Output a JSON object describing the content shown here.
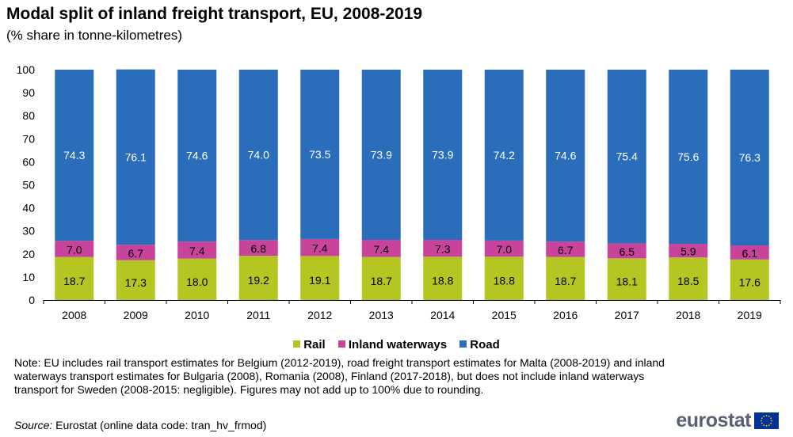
{
  "header": {
    "title": "Modal split of inland freight transport, EU, 2008-2019",
    "subtitle": "(% share in tonne-kilometres)"
  },
  "chart_data": {
    "type": "bar",
    "stacked": true,
    "categories": [
      "2008",
      "2009",
      "2010",
      "2011",
      "2012",
      "2013",
      "2014",
      "2015",
      "2016",
      "2017",
      "2018",
      "2019"
    ],
    "series": [
      {
        "name": "Rail",
        "color": "#b5c522",
        "values": [
          18.7,
          17.3,
          18.0,
          19.2,
          19.1,
          18.7,
          18.8,
          18.8,
          18.7,
          18.1,
          18.5,
          17.6
        ]
      },
      {
        "name": "Inland waterways",
        "color": "#c8439a",
        "values": [
          7.0,
          6.7,
          7.4,
          6.8,
          7.4,
          7.4,
          7.3,
          7.0,
          6.7,
          6.5,
          5.9,
          6.1
        ]
      },
      {
        "name": "Road",
        "color": "#2a6ebb",
        "values": [
          74.3,
          76.1,
          74.6,
          74.0,
          73.5,
          73.9,
          73.9,
          74.2,
          74.6,
          75.4,
          75.6,
          76.3
        ]
      }
    ],
    "ylim": [
      0,
      100
    ],
    "yticks": [
      0,
      10,
      20,
      30,
      40,
      50,
      60,
      70,
      80,
      90,
      100
    ],
    "grid": false,
    "legend": "bottom"
  },
  "footer": {
    "note": "Note: EU includes rail transport estimates for Belgium (2012-2019), road freight transport estimates for Malta (2008-2019) and inland waterways transport estimates for Bulgaria (2008), Romania (2008), Finland (2017-2018), but does not include inland waterways transport for Sweden (2008-2015: negligible). Figures may not add up to 100% due to rounding.",
    "source_label": "Source:",
    "source_text": " Eurostat (online data code: tran_hv_frmod)",
    "logo_text": "eurostat"
  }
}
